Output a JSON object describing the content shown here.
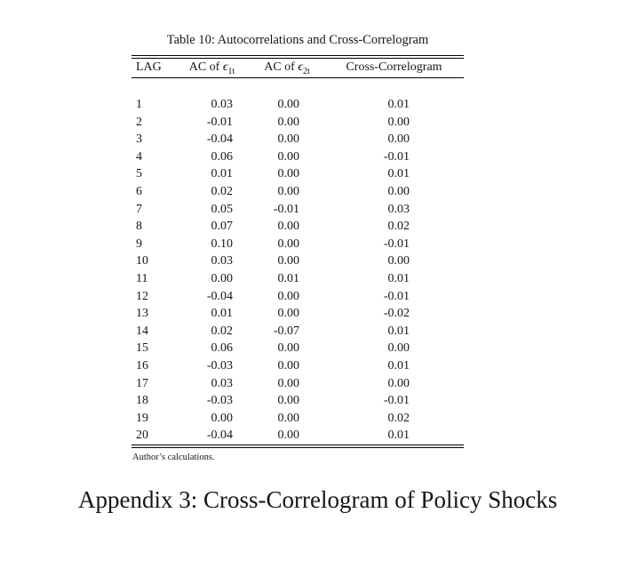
{
  "page": {
    "footnote": "Author’s calculations.",
    "appendix_heading": "Appendix 3: Cross-Correlogram of Policy Shocks"
  },
  "table": {
    "caption": "Table 10: Autocorrelations and Cross-Correlogram",
    "headers": {
      "lag": "LAG",
      "ac1": {
        "label": "AC of ",
        "symbol": "ϵ",
        "sub": "1t"
      },
      "ac2": {
        "label": "AC of ",
        "symbol": "ϵ",
        "sub": "2t"
      },
      "cross": "Cross-Correlogram"
    },
    "rows": [
      {
        "lag": "1",
        "ac1": "0.03",
        "ac2": "0.00",
        "cross": "0.01"
      },
      {
        "lag": "2",
        "ac1": "-0.01",
        "ac2": "0.00",
        "cross": "0.00"
      },
      {
        "lag": "3",
        "ac1": "-0.04",
        "ac2": "0.00",
        "cross": "0.00"
      },
      {
        "lag": "4",
        "ac1": "0.06",
        "ac2": "0.00",
        "cross": "-0.01"
      },
      {
        "lag": "5",
        "ac1": "0.01",
        "ac2": "0.00",
        "cross": "0.01"
      },
      {
        "lag": "6",
        "ac1": "0.02",
        "ac2": "0.00",
        "cross": "0.00"
      },
      {
        "lag": "7",
        "ac1": "0.05",
        "ac2": "-0.01",
        "cross": "0.03"
      },
      {
        "lag": "8",
        "ac1": "0.07",
        "ac2": "0.00",
        "cross": "0.02"
      },
      {
        "lag": "9",
        "ac1": "0.10",
        "ac2": "0.00",
        "cross": "-0.01"
      },
      {
        "lag": "10",
        "ac1": "0.03",
        "ac2": "0.00",
        "cross": "0.00"
      },
      {
        "lag": "11",
        "ac1": "0.00",
        "ac2": "0.01",
        "cross": "0.01"
      },
      {
        "lag": "12",
        "ac1": "-0.04",
        "ac2": "0.00",
        "cross": "-0.01"
      },
      {
        "lag": "13",
        "ac1": "0.01",
        "ac2": "0.00",
        "cross": "-0.02"
      },
      {
        "lag": "14",
        "ac1": "0.02",
        "ac2": "-0.07",
        "cross": "0.01"
      },
      {
        "lag": "15",
        "ac1": "0.06",
        "ac2": "0.00",
        "cross": "0.00"
      },
      {
        "lag": "16",
        "ac1": "-0.03",
        "ac2": "0.00",
        "cross": "0.01"
      },
      {
        "lag": "17",
        "ac1": "0.03",
        "ac2": "0.00",
        "cross": "0.00"
      },
      {
        "lag": "18",
        "ac1": "-0.03",
        "ac2": "0.00",
        "cross": "-0.01"
      },
      {
        "lag": "19",
        "ac1": "0.00",
        "ac2": "0.00",
        "cross": "0.02"
      },
      {
        "lag": "20",
        "ac1": "-0.04",
        "ac2": "0.00",
        "cross": "0.01"
      }
    ]
  },
  "colors": {
    "text": "#161616",
    "rule": "#000000",
    "background": "#ffffff"
  }
}
